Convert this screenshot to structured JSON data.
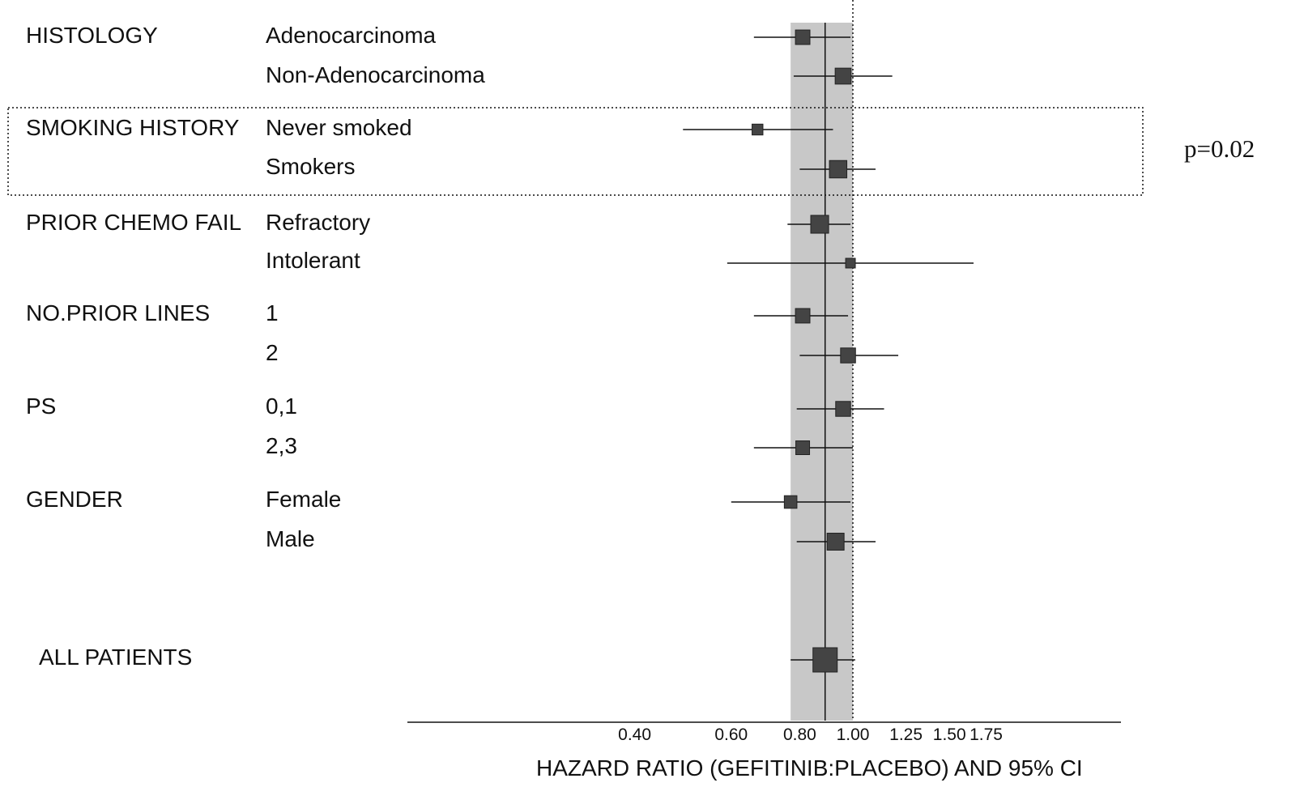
{
  "chart_data": {
    "type": "forest",
    "xlabel": "HAZARD RATIO (GEFITINIB:PLACEBO) AND 95% CI",
    "x_scale": "log",
    "xlim": [
      0.35,
      1.8
    ],
    "x_ticks": [
      {
        "value": 0.4,
        "label": "0.40"
      },
      {
        "value": 0.6,
        "label": "0.60"
      },
      {
        "value": 0.8,
        "label": "0.80"
      },
      {
        "value": 1.0,
        "label": "1.00"
      },
      {
        "value": 1.25,
        "label": "1.25"
      },
      {
        "value": 1.5,
        "label": "1.50"
      },
      {
        "value": 1.75,
        "label": "1.75"
      }
    ],
    "overall": {
      "label": "ALL PATIENTS",
      "hr": 0.89,
      "ci": [
        0.77,
        1.01
      ]
    },
    "reference_line": 1.0,
    "shaded_band": [
      0.77,
      1.0
    ],
    "groups": [
      {
        "name": "HISTOLOGY",
        "subgroups": [
          {
            "label": "Adenocarcinoma",
            "hr": 0.81,
            "ci": [
              0.66,
              0.99
            ],
            "weight": 0.55
          },
          {
            "label": "Non-Adenocarcinoma",
            "hr": 0.96,
            "ci": [
              0.78,
              1.18
            ],
            "weight": 0.65
          }
        ]
      },
      {
        "name": "SMOKING HISTORY",
        "highlighted": true,
        "p_value": "p=0.02",
        "subgroups": [
          {
            "label": "Never smoked",
            "hr": 0.67,
            "ci": [
              0.49,
              0.92
            ],
            "weight": 0.3
          },
          {
            "label": "Smokers",
            "hr": 0.94,
            "ci": [
              0.8,
              1.1
            ],
            "weight": 0.75
          }
        ]
      },
      {
        "name": "PRIOR CHEMO FAIL",
        "subgroups": [
          {
            "label": "Refractory",
            "hr": 0.87,
            "ci": [
              0.76,
              0.99
            ],
            "weight": 0.78
          },
          {
            "label": "Intolerant",
            "hr": 0.99,
            "ci": [
              0.59,
              1.66
            ],
            "weight": 0.22
          }
        ]
      },
      {
        "name": "NO.PRIOR LINES",
        "subgroups": [
          {
            "label": "1",
            "hr": 0.81,
            "ci": [
              0.66,
              0.98
            ],
            "weight": 0.55
          },
          {
            "label": "2",
            "hr": 0.98,
            "ci": [
              0.8,
              1.21
            ],
            "weight": 0.58
          }
        ]
      },
      {
        "name": "PS",
        "subgroups": [
          {
            "label": "0,1",
            "hr": 0.96,
            "ci": [
              0.79,
              1.14
            ],
            "weight": 0.58
          },
          {
            "label": "2,3",
            "hr": 0.81,
            "ci": [
              0.66,
              1.0
            ],
            "weight": 0.5
          }
        ]
      },
      {
        "name": "GENDER",
        "subgroups": [
          {
            "label": "Female",
            "hr": 0.77,
            "ci": [
              0.6,
              0.99
            ],
            "weight": 0.42
          },
          {
            "label": "Male",
            "hr": 0.93,
            "ci": [
              0.79,
              1.1
            ],
            "weight": 0.72
          }
        ]
      }
    ]
  },
  "colors": {
    "band": "#c8c8c8",
    "marker": "#444444",
    "line": "#111111"
  }
}
